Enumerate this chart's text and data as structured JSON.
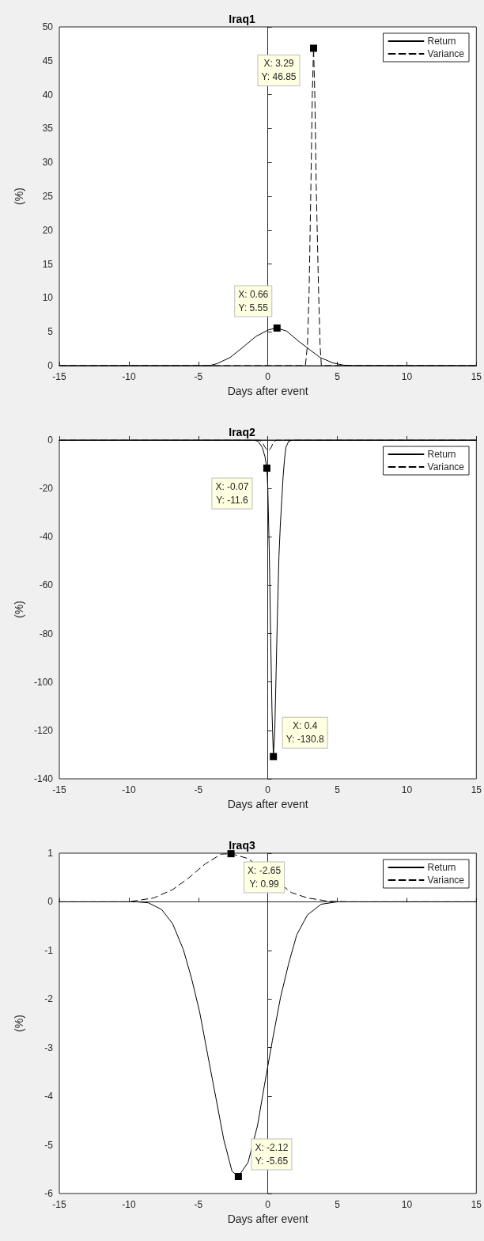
{
  "chart_data": [
    {
      "type": "line",
      "title": "Iraq1",
      "xlabel": "Days after event",
      "ylabel": "(%)",
      "xlim": [
        -15,
        15
      ],
      "xticks": [
        -15,
        -10,
        -5,
        0,
        5,
        10,
        15
      ],
      "ylim": [
        0,
        50
      ],
      "yticks": [
        0,
        5,
        10,
        15,
        20,
        25,
        30,
        35,
        40,
        45,
        50
      ],
      "legend": "top right",
      "marker": "none",
      "series": [
        {
          "name": "Return",
          "color": "#000000",
          "line_style": "solid",
          "x": [
            -15,
            -4.2,
            -3.65,
            -2.72,
            -1.8,
            -0.87,
            0.06,
            0.66,
            1.35,
            2.28,
            3.02,
            3.76,
            4.69,
            5.43,
            6,
            15
          ],
          "values": [
            0,
            0,
            0.3,
            1.2,
            2.7,
            4.3,
            5.3,
            5.55,
            5.1,
            3.5,
            2.35,
            1.2,
            0.4,
            0.08,
            0,
            0
          ]
        },
        {
          "name": "Variance",
          "color": "#000000",
          "line_style": "dashed",
          "x": [
            -15,
            2.7,
            2.85,
            2.97,
            3.1,
            3.2,
            3.29,
            3.38,
            3.48,
            3.65,
            3.76,
            3.85,
            15
          ],
          "values": [
            0,
            0,
            3,
            11,
            26.7,
            40,
            46.85,
            40,
            26.7,
            11,
            3,
            0,
            0
          ]
        }
      ],
      "annotations": [
        {
          "text": "X: 3.29\nY: 46.85",
          "x": 3.29,
          "y": 46.85
        },
        {
          "text": "X: 0.66\nY: 5.55",
          "x": 0.66,
          "y": 5.55
        }
      ]
    },
    {
      "type": "line",
      "title": "Iraq2",
      "xlabel": "Days after event",
      "ylabel": "(%)",
      "xlim": [
        -15,
        15
      ],
      "xticks": [
        -15,
        -10,
        -5,
        0,
        5,
        10,
        15
      ],
      "ylim": [
        -140,
        0
      ],
      "yticks": [
        -140,
        -120,
        -100,
        -80,
        -60,
        -40,
        -20,
        0
      ],
      "legend": "top right",
      "marker": "none",
      "series": [
        {
          "name": "Return",
          "color": "#000000",
          "line_style": "solid",
          "x": [
            -15,
            -1,
            -0.7,
            -0.4,
            -0.2,
            -0.07,
            0,
            0.1,
            0.2,
            0.3,
            0.4,
            0.5,
            0.6,
            0.7,
            0.8,
            0.9,
            1,
            1.1,
            1.2,
            1.3,
            1.5,
            1.8,
            15
          ],
          "values": [
            0,
            0,
            -0.5,
            -3,
            -7,
            -11.6,
            -20,
            -45,
            -80,
            -112,
            -130.8,
            -120,
            -95,
            -70,
            -48,
            -35,
            -25,
            -15,
            -8,
            -3,
            -0.5,
            0,
            0
          ]
        },
        {
          "name": "Variance",
          "color": "#000000",
          "line_style": "dashed",
          "x": [
            -15,
            -0.6,
            -0.4,
            -0.2,
            0,
            0.2,
            0.4,
            0.6,
            15
          ],
          "values": [
            0,
            0,
            -1,
            -3,
            -4.5,
            -3.5,
            -1,
            0,
            0
          ]
        }
      ],
      "annotations": [
        {
          "text": "X: -0.07\nY: -11.6",
          "x": -0.07,
          "y": -11.6
        },
        {
          "text": "X: 0.4\nY: -130.8",
          "x": 0.4,
          "y": -130.8
        }
      ]
    },
    {
      "type": "line",
      "title": "Iraq3",
      "xlabel": "Days after event",
      "ylabel": "(%)",
      "xlim": [
        -15,
        15
      ],
      "xticks": [
        -15,
        -10,
        -5,
        0,
        5,
        10,
        15
      ],
      "ylim": [
        -6,
        1
      ],
      "yticks": [
        -6,
        -5,
        -4,
        -3,
        -2,
        -1,
        0,
        1
      ],
      "legend": "top right",
      "marker": "none",
      "series": [
        {
          "name": "Return",
          "color": "#000000",
          "line_style": "solid",
          "x": [
            -15,
            -9.5,
            -8.6,
            -7.63,
            -6.85,
            -6.08,
            -5.5,
            -4.91,
            -4.33,
            -3.75,
            -3.17,
            -2.58,
            -2.12,
            -1.42,
            -0.74,
            -0.25,
            0.33,
            0.91,
            1.5,
            2.08,
            2.85,
            3.83,
            5,
            15
          ],
          "values": [
            0,
            0,
            -0.02,
            -0.16,
            -0.45,
            -0.98,
            -1.56,
            -2.26,
            -3.14,
            -4.01,
            -4.89,
            -5.54,
            -5.65,
            -5.36,
            -4.6,
            -3.78,
            -2.85,
            -1.97,
            -1.27,
            -0.68,
            -0.27,
            -0.05,
            0,
            0
          ]
        },
        {
          "name": "Variance",
          "color": "#000000",
          "line_style": "dashed",
          "x": [
            -15,
            -10,
            -8.2,
            -6.85,
            -5.7,
            -4.5,
            -3.36,
            -2.65,
            -1.42,
            1.69,
            2.85,
            4.4,
            5.8,
            15
          ],
          "values": [
            0,
            0,
            0.08,
            0.25,
            0.49,
            0.78,
            0.98,
            0.99,
            0.89,
            0.19,
            0.08,
            0.01,
            0,
            0
          ]
        }
      ],
      "annotations": [
        {
          "text": "X: -2.65\nY: 0.99",
          "x": -2.65,
          "y": 0.99
        },
        {
          "text": "X: -2.12\nY: -5.65",
          "x": -2.12,
          "y": -5.65
        }
      ]
    }
  ]
}
